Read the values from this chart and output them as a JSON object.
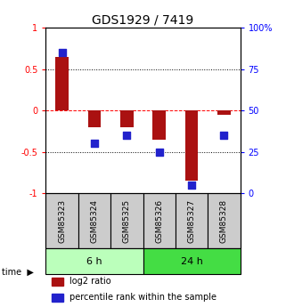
{
  "title": "GDS1929 / 7419",
  "samples": [
    "GSM85323",
    "GSM85324",
    "GSM85325",
    "GSM85326",
    "GSM85327",
    "GSM85328"
  ],
  "log2_ratio": [
    0.65,
    -0.2,
    -0.2,
    -0.35,
    -0.85,
    -0.05
  ],
  "percentile_rank": [
    85,
    30,
    35,
    25,
    5,
    35
  ],
  "groups": [
    {
      "label": "6 h",
      "indices": [
        0,
        1,
        2
      ],
      "color": "#bbffbb"
    },
    {
      "label": "24 h",
      "indices": [
        3,
        4,
        5
      ],
      "color": "#44dd44"
    }
  ],
  "bar_color": "#aa1111",
  "dot_color": "#2222cc",
  "ylim_left": [
    -1.0,
    1.0
  ],
  "ylim_right": [
    0,
    100
  ],
  "yticks_left": [
    -1.0,
    -0.5,
    0.0,
    0.5,
    1.0
  ],
  "ytick_labels_left": [
    "-1",
    "-0.5",
    "0",
    "0.5",
    "1"
  ],
  "yticks_right": [
    0,
    25,
    50,
    75,
    100
  ],
  "ytick_labels_right": [
    "0",
    "25",
    "50",
    "75",
    "100%"
  ],
  "hlines": [
    -0.5,
    0.0,
    0.5
  ],
  "hline_colors": [
    "black",
    "red",
    "black"
  ],
  "hline_styles": [
    "dotted",
    "dashed",
    "dotted"
  ],
  "bar_width": 0.4,
  "dot_size": 30,
  "sample_box_color": "#cccccc",
  "legend_entries": [
    "log2 ratio",
    "percentile rank within the sample"
  ],
  "title_fontsize": 10,
  "tick_fontsize": 7,
  "sample_label_fontsize": 6.5,
  "group_label_fontsize": 8,
  "legend_fontsize": 7
}
